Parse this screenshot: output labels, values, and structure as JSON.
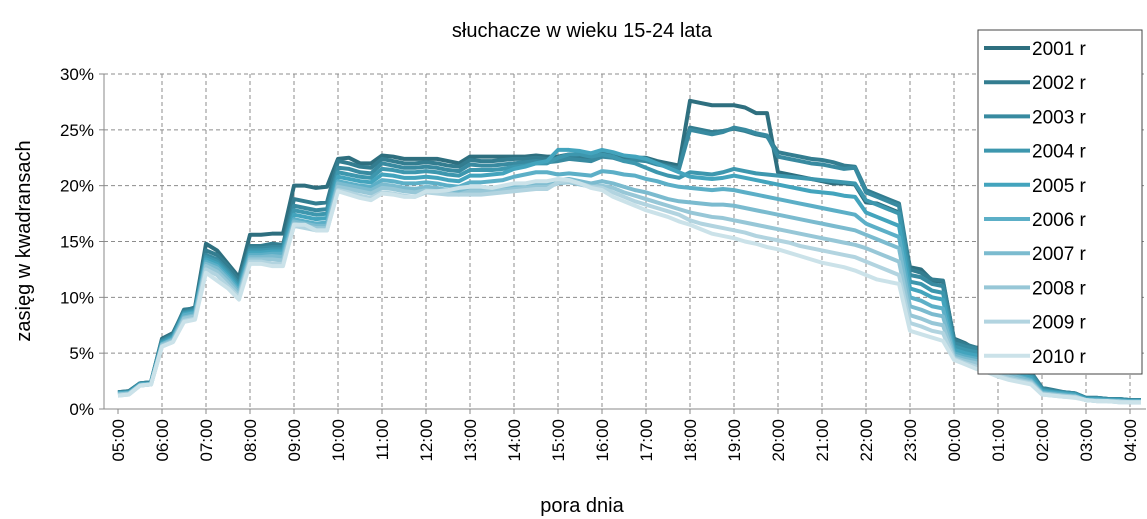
{
  "chart_data": {
    "type": "line",
    "title": "słuchacze w wieku 15-24 lata",
    "x_label": "pora dnia",
    "y_label": "zasięg w kwadransach",
    "categories": [
      "05:00",
      null,
      null,
      null,
      "06:00",
      null,
      null,
      null,
      "07:00",
      null,
      null,
      null,
      "08:00",
      null,
      null,
      null,
      "09:00",
      null,
      null,
      null,
      "10:00",
      null,
      null,
      null,
      "11:00",
      null,
      null,
      null,
      "12:00",
      null,
      null,
      null,
      "13:00",
      null,
      null,
      null,
      "14:00",
      null,
      null,
      null,
      "15:00",
      null,
      null,
      null,
      "16:00",
      null,
      null,
      null,
      "17:00",
      null,
      null,
      null,
      "18:00",
      null,
      null,
      null,
      "19:00",
      null,
      null,
      null,
      "20:00",
      null,
      null,
      null,
      "21:00",
      null,
      null,
      null,
      "22:00",
      null,
      null,
      null,
      "23:00",
      null,
      null,
      null,
      "00:00",
      null,
      null,
      null,
      "01:00",
      null,
      null,
      null,
      "02:00",
      null,
      null,
      null,
      "03:00",
      null,
      null,
      null,
      "04:00",
      null
    ],
    "ylim": [
      0,
      30
    ],
    "yticks": [
      {
        "value": 0,
        "label": "0%"
      },
      {
        "value": 5,
        "label": "5%"
      },
      {
        "value": 10,
        "label": "10%"
      },
      {
        "value": 15,
        "label": "15%"
      },
      {
        "value": 20,
        "label": "20%"
      },
      {
        "value": 25,
        "label": "25%"
      },
      {
        "value": 30,
        "label": "30%"
      }
    ],
    "grid": true,
    "legend": "right",
    "series": [
      {
        "name": "2001 r",
        "color": "#2e6f7f",
        "values": [
          1.5,
          1.6,
          2.3,
          2.4,
          6.3,
          6.8,
          8.8,
          9.1,
          14.8,
          14.2,
          13,
          11.8,
          15.6,
          15.6,
          15.7,
          15.7,
          20,
          20,
          19.8,
          19.9,
          22.4,
          22.5,
          22,
          22,
          22.7,
          22.6,
          22.4,
          22.4,
          22.4,
          22.4,
          22.2,
          22,
          22.6,
          22.6,
          22.6,
          22.6,
          22.6,
          22.6,
          22.7,
          22.6,
          22.6,
          22.8,
          22.6,
          22.4,
          22.9,
          22.8,
          22.4,
          22.5,
          22.5,
          22.2,
          22,
          21.8,
          27.6,
          27.4,
          27.2,
          27.2,
          27.2,
          27,
          26.5,
          26.5,
          21.2,
          21,
          20.8,
          20.6,
          20.4,
          20.2,
          20.2,
          20.1,
          18.5,
          18.4,
          18,
          17.6,
          12.7,
          12.5,
          11.5,
          11.4,
          6.3,
          5.9,
          5.3,
          5.4,
          4.2,
          3.9,
          3.5,
          3.1,
          1.8,
          1.6,
          1.5,
          1.4,
          1,
          1,
          0.9,
          0.9,
          0.8,
          0.8
        ]
      },
      {
        "name": "2002 r",
        "color": "#337d90",
        "values": [
          1.5,
          1.6,
          2.3,
          2.4,
          6.2,
          6.7,
          8.9,
          9,
          14.2,
          13.8,
          12.8,
          11.5,
          14.6,
          14.6,
          14.8,
          14.7,
          18.8,
          18.6,
          18.4,
          18.5,
          22.2,
          22,
          21.7,
          21.6,
          22.4,
          22.2,
          22,
          22,
          22.1,
          22,
          21.8,
          21.7,
          22.3,
          22.2,
          22.2,
          22.3,
          22.4,
          22.4,
          22.5,
          22.4,
          22.4,
          22.6,
          22.4,
          22.3,
          22.7,
          22.6,
          22.3,
          22.4,
          22.3,
          22,
          21.8,
          21.6,
          25.2,
          25,
          24.8,
          24.9,
          25.1,
          24.9,
          24.6,
          24.4,
          23,
          22.8,
          22.6,
          22.4,
          22.3,
          22.1,
          21.8,
          21.7,
          19.6,
          19.2,
          18.8,
          18.4,
          12.5,
          12.2,
          11.6,
          11.5,
          6.2,
          5.8,
          5.5,
          5.5,
          4.4,
          4.1,
          3.7,
          3.3,
          1.9,
          1.7,
          1.5,
          1.4,
          1,
          1,
          0.9,
          0.9,
          0.8,
          0.8
        ]
      },
      {
        "name": "2003 r",
        "color": "#388aa0",
        "values": [
          1.5,
          1.5,
          2.3,
          2.4,
          6.1,
          6.6,
          8.7,
          8.9,
          13.8,
          13.4,
          12.4,
          11.2,
          14.4,
          14.4,
          14.5,
          14.5,
          18.2,
          18,
          17.8,
          17.9,
          21.6,
          21.5,
          21.2,
          21.1,
          22,
          21.8,
          21.6,
          21.6,
          21.7,
          21.6,
          21.4,
          21.3,
          21.9,
          21.8,
          21.8,
          21.9,
          22,
          22.1,
          22.2,
          22.1,
          22.2,
          22.4,
          22.3,
          22.2,
          22.6,
          22.5,
          22.2,
          22.3,
          22.2,
          21.9,
          21.7,
          21.5,
          25,
          24.8,
          24.6,
          24.8,
          25.2,
          25,
          24.7,
          24.5,
          22.6,
          22.4,
          22.2,
          22,
          21.9,
          21.7,
          21.5,
          21.6,
          19.4,
          19,
          18.6,
          18.2,
          12,
          11.8,
          11.2,
          11,
          5.9,
          5.6,
          5.4,
          5.3,
          4.2,
          3.9,
          3.5,
          3.2,
          1.8,
          1.6,
          1.5,
          1.4,
          1,
          1,
          0.9,
          0.9,
          0.8,
          0.8
        ]
      },
      {
        "name": "2004 r",
        "color": "#3d97ae",
        "values": [
          1.4,
          1.5,
          2.2,
          2.3,
          6,
          6.5,
          8.6,
          8.8,
          13.6,
          13.2,
          12.2,
          11,
          14.2,
          14.2,
          14.3,
          14.3,
          17.8,
          17.6,
          17.4,
          17.5,
          21.2,
          21,
          20.8,
          20.7,
          21.5,
          21.4,
          21.2,
          21.2,
          21.3,
          21.2,
          21,
          20.9,
          21.4,
          21.4,
          21.4,
          21.5,
          21.7,
          21.8,
          22,
          22,
          22.5,
          22.8,
          22.8,
          22.6,
          22.8,
          22.6,
          22.2,
          22,
          21.6,
          21.2,
          20.9,
          20.7,
          21.2,
          21.1,
          21,
          21.2,
          21.5,
          21.3,
          21.1,
          21,
          20.9,
          20.8,
          20.7,
          20.6,
          20.5,
          20.4,
          20.3,
          20.2,
          18.7,
          18.3,
          17.9,
          17.5,
          11.4,
          11.2,
          10.6,
          10.4,
          5.6,
          5.3,
          5.1,
          5,
          4,
          3.7,
          3.3,
          3,
          1.7,
          1.5,
          1.4,
          1.3,
          0.9,
          0.9,
          0.8,
          0.8,
          0.7,
          0.7
        ]
      },
      {
        "name": "2005 r",
        "color": "#43a4bd",
        "values": [
          1.4,
          1.5,
          2.2,
          2.3,
          5.9,
          6.4,
          8.5,
          8.7,
          13.4,
          13,
          12,
          10.8,
          14,
          14,
          14.1,
          14.1,
          17.4,
          17.2,
          17,
          17.1,
          20.8,
          20.6,
          20.4,
          20.3,
          21,
          20.9,
          20.7,
          20.7,
          20.8,
          20.7,
          20.5,
          20.4,
          20.9,
          20.9,
          21,
          21.1,
          21.5,
          21.7,
          22,
          22.2,
          23.2,
          23.2,
          23.1,
          22.9,
          23.2,
          23,
          22.7,
          22.6,
          22.4,
          22,
          21.6,
          21.2,
          20.8,
          20.7,
          20.6,
          20.7,
          20.9,
          20.7,
          20.5,
          20.3,
          20.1,
          19.9,
          19.7,
          19.5,
          19.4,
          19.3,
          19.1,
          19,
          17.6,
          17.2,
          16.8,
          16.4,
          10.8,
          10.5,
          10,
          9.8,
          5.3,
          5,
          4.8,
          4.7,
          3.8,
          3.5,
          3.1,
          2.8,
          1.6,
          1.5,
          1.4,
          1.3,
          0.9,
          0.9,
          0.8,
          0.8,
          0.7,
          0.7
        ]
      },
      {
        "name": "2006 r",
        "color": "#5cafc7",
        "values": [
          1.4,
          1.4,
          2.2,
          2.3,
          5.8,
          6.3,
          8.4,
          8.6,
          13.2,
          12.8,
          11.8,
          10.6,
          13.8,
          13.8,
          13.9,
          13.9,
          17,
          16.8,
          16.6,
          16.7,
          20.4,
          20.2,
          20,
          19.9,
          20.5,
          20.4,
          20.2,
          20.2,
          20.3,
          20.2,
          20,
          19.9,
          20.3,
          20.3,
          20.4,
          20.5,
          20.8,
          21,
          21.2,
          21.2,
          21,
          21.1,
          21,
          20.9,
          21.3,
          21.2,
          21,
          20.9,
          20.6,
          20.4,
          20.1,
          19.9,
          19.8,
          19.7,
          19.6,
          19.7,
          19.6,
          19.4,
          19.2,
          19,
          18.8,
          18.6,
          18.4,
          18.2,
          18,
          17.8,
          17.6,
          17.4,
          16.6,
          16.2,
          15.8,
          15.4,
          10,
          9.7,
          9.2,
          9,
          5,
          4.7,
          4.5,
          4.4,
          3.6,
          3.3,
          2.9,
          2.6,
          1.5,
          1.4,
          1.3,
          1.2,
          0.8,
          0.8,
          0.8,
          0.7,
          0.7,
          0.7
        ]
      },
      {
        "name": "2007 r",
        "color": "#7bbbcf",
        "values": [
          1.3,
          1.4,
          2.1,
          2.2,
          5.8,
          6.2,
          8.2,
          8.4,
          13,
          12.6,
          11.6,
          10.4,
          13.6,
          13.6,
          13.7,
          13.6,
          16.8,
          16.6,
          16.4,
          16.4,
          20.2,
          20,
          19.8,
          19.6,
          20.1,
          20,
          19.8,
          19.7,
          19.9,
          19.8,
          19.6,
          19.5,
          19.8,
          19.8,
          19.8,
          19.9,
          20,
          20.1,
          20.2,
          20.2,
          20.5,
          20.6,
          20.4,
          20.2,
          20.4,
          20.2,
          19.9,
          19.6,
          19.4,
          19.1,
          18.8,
          18.6,
          18.5,
          18.4,
          18.3,
          18.3,
          18.2,
          18,
          17.8,
          17.6,
          17.4,
          17.2,
          17,
          16.8,
          16.6,
          16.4,
          16.2,
          16,
          15.6,
          15.2,
          14.8,
          14.4,
          9.2,
          8.9,
          8.5,
          8.3,
          4.8,
          4.5,
          4.3,
          4.2,
          3.4,
          3.1,
          2.8,
          2.5,
          1.4,
          1.3,
          1.2,
          1.1,
          0.8,
          0.8,
          0.7,
          0.7,
          0.6,
          0.6
        ]
      },
      {
        "name": "2008 r",
        "color": "#97c7d7",
        "values": [
          1.3,
          1.4,
          2.1,
          2.2,
          5.7,
          6.1,
          8.1,
          8.3,
          12.8,
          12.3,
          11.3,
          10.2,
          13.4,
          13.4,
          13.4,
          13.3,
          16.6,
          16.4,
          16.2,
          16.2,
          19.9,
          19.7,
          19.5,
          19.3,
          19.8,
          19.7,
          19.5,
          19.4,
          19.6,
          19.5,
          19.3,
          19.2,
          19.5,
          19.5,
          19.5,
          19.6,
          19.7,
          19.8,
          19.9,
          19.9,
          20.2,
          20.3,
          20.1,
          19.9,
          20,
          19.8,
          19.4,
          19.1,
          18.8,
          18.5,
          18.2,
          17.9,
          17.6,
          17.4,
          17.2,
          17.1,
          16.9,
          16.7,
          16.5,
          16.3,
          16.1,
          15.9,
          15.7,
          15.5,
          15.3,
          15.1,
          14.9,
          14.7,
          14.4,
          14,
          13.6,
          13.2,
          8.4,
          8.1,
          7.7,
          7.5,
          4.6,
          4.3,
          4.1,
          4,
          3.2,
          2.9,
          2.6,
          2.4,
          1.4,
          1.3,
          1.2,
          1.1,
          0.8,
          0.7,
          0.7,
          0.7,
          0.6,
          0.6
        ]
      },
      {
        "name": "2009 r",
        "color": "#b2d4e0",
        "values": [
          1.2,
          1.3,
          2.1,
          2.2,
          5.6,
          6,
          7.9,
          8.1,
          12.5,
          12,
          11,
          10,
          13.2,
          13.2,
          13,
          13,
          16.4,
          16.2,
          16,
          16,
          19.6,
          19.4,
          19.1,
          18.9,
          19.4,
          19.3,
          19.1,
          19,
          19.4,
          19.3,
          19.2,
          19.2,
          19.2,
          19.2,
          19.3,
          19.4,
          19.5,
          19.6,
          19.7,
          19.7,
          20.3,
          20.4,
          20.2,
          19.9,
          19.8,
          19.4,
          19,
          18.6,
          18.3,
          18,
          17.7,
          17.4,
          16.9,
          16.6,
          16.4,
          16.2,
          16,
          15.8,
          15.5,
          15.3,
          15.1,
          14.9,
          14.6,
          14.4,
          14.2,
          14,
          13.8,
          13.6,
          13.2,
          12.8,
          12.4,
          12,
          7.7,
          7.4,
          7,
          6.8,
          4.5,
          4.1,
          3.8,
          3.6,
          3,
          2.7,
          2.5,
          2.3,
          1.3,
          1.2,
          1.1,
          1.1,
          0.8,
          0.7,
          0.7,
          0.6,
          0.6,
          0.6
        ]
      },
      {
        "name": "2010 r",
        "color": "#cbe2e9",
        "values": [
          1.2,
          1.3,
          2.1,
          2.2,
          5.6,
          6,
          7.8,
          8,
          12.2,
          11.5,
          10.8,
          9.8,
          13,
          13,
          12.8,
          12.8,
          16.5,
          16.5,
          16,
          16,
          19.5,
          19.2,
          18.9,
          18.7,
          19.3,
          19.2,
          19,
          19,
          19.5,
          19.5,
          19.6,
          19.8,
          19.9,
          19.9,
          19.8,
          20,
          20.2,
          20.2,
          20.4,
          20.4,
          20.6,
          20.5,
          20.2,
          19.8,
          19.6,
          19,
          18.6,
          18.2,
          17.8,
          17.5,
          17.2,
          16.8,
          16.5,
          16.1,
          15.7,
          15.5,
          15.3,
          15,
          14.8,
          14.5,
          14.3,
          14,
          13.7,
          13.4,
          13.1,
          12.9,
          12.7,
          12.4,
          12,
          11.6,
          11.4,
          11.2,
          7,
          6.7,
          6.4,
          6.1,
          4.4,
          4,
          3.6,
          3.3,
          2.9,
          2.6,
          2.4,
          2.2,
          1.3,
          1.2,
          1.1,
          1,
          0.8,
          0.7,
          0.7,
          0.6,
          0.6,
          0.6
        ]
      }
    ]
  }
}
